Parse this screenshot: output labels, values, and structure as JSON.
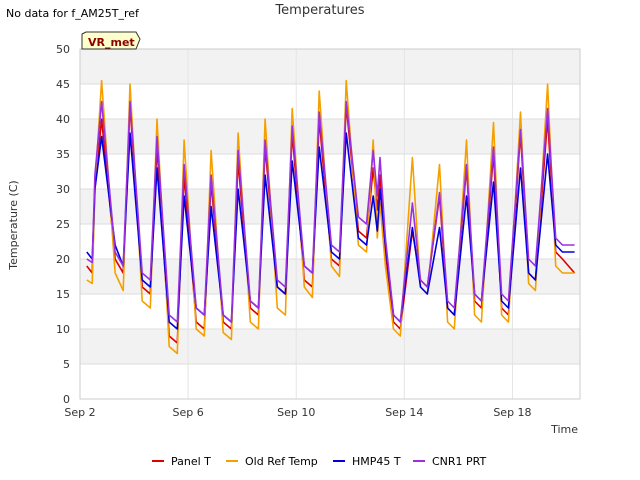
{
  "no_data_text": "No data for f_AM25T_ref",
  "badge": {
    "text": "VR_met",
    "bg": "#ffffcc",
    "text_color": "#8b0000"
  },
  "chart_data": {
    "type": "line",
    "title": "Temperatures",
    "xlabel": "Time",
    "ylabel": "Temperature (C)",
    "ylim": [
      0,
      50
    ],
    "yticks": [
      0,
      5,
      10,
      15,
      20,
      25,
      30,
      35,
      40,
      45,
      50
    ],
    "xlim": [
      2.0,
      20.5
    ],
    "xticks": [
      {
        "value": 2,
        "label": "Sep 2"
      },
      {
        "value": 6,
        "label": "Sep 6"
      },
      {
        "value": 10,
        "label": "Sep 10"
      },
      {
        "value": 14,
        "label": "Sep 14"
      },
      {
        "value": 18,
        "label": "Sep 18"
      }
    ],
    "grid": true,
    "legend_position": "bottom",
    "series": [
      {
        "name": "Panel T",
        "color": "#dd0000",
        "x": [
          2.25,
          2.45,
          2.55,
          2.8,
          3.3,
          3.6,
          3.85,
          4.3,
          4.6,
          4.85,
          5.3,
          5.6,
          5.85,
          6.3,
          6.6,
          6.85,
          7.3,
          7.6,
          7.85,
          8.3,
          8.6,
          8.85,
          9.3,
          9.6,
          9.85,
          10.3,
          10.6,
          10.85,
          11.3,
          11.6,
          11.85,
          12.3,
          12.6,
          12.85,
          13.0,
          13.1,
          13.3,
          13.6,
          13.85,
          14.3,
          14.6,
          14.85,
          15.3,
          15.6,
          15.85,
          16.3,
          16.6,
          16.85,
          17.3,
          17.6,
          17.85,
          18.3,
          18.6,
          18.85,
          19.3,
          19.6,
          19.85,
          20.3
        ],
        "y": [
          19,
          18,
          30,
          40,
          20,
          18,
          42,
          16,
          15,
          36,
          9,
          8,
          32,
          11,
          10,
          31,
          11,
          10,
          34,
          13,
          12,
          36,
          16,
          15,
          38,
          17,
          16,
          40,
          20,
          19,
          42,
          24,
          23,
          33,
          27,
          32,
          21,
          11,
          10,
          24,
          17,
          16,
          29,
          13,
          12,
          33,
          14,
          13,
          35,
          13,
          12,
          38,
          18,
          17,
          40,
          21,
          20,
          18
        ]
      },
      {
        "name": "Old Ref Temp",
        "color": "#f5a000",
        "x": [
          2.25,
          2.45,
          2.55,
          2.8,
          3.3,
          3.6,
          3.85,
          4.3,
          4.6,
          4.85,
          5.3,
          5.6,
          5.85,
          6.3,
          6.6,
          6.85,
          7.3,
          7.6,
          7.85,
          8.3,
          8.6,
          8.85,
          9.3,
          9.6,
          9.85,
          10.3,
          10.6,
          10.85,
          11.3,
          11.6,
          11.85,
          12.3,
          12.6,
          12.85,
          13.0,
          13.1,
          13.3,
          13.6,
          13.85,
          14.3,
          14.6,
          14.85,
          15.3,
          15.6,
          15.85,
          16.3,
          16.6,
          16.85,
          17.3,
          17.6,
          17.85,
          18.3,
          18.6,
          18.85,
          19.3,
          19.6,
          19.85,
          20.3
        ],
        "y": [
          17,
          16.5,
          30,
          45.5,
          18,
          15.5,
          45,
          14,
          13,
          40,
          7.5,
          6.5,
          37,
          10,
          9,
          35.5,
          9.5,
          8.5,
          38,
          11,
          10,
          40,
          13,
          12,
          41.5,
          16,
          14.5,
          44,
          19,
          17.5,
          45.5,
          22,
          21,
          37,
          23,
          28,
          19,
          10,
          9,
          34.5,
          16,
          15,
          33.5,
          11,
          10,
          37,
          12,
          11,
          39.5,
          12,
          11,
          41,
          16.5,
          15.5,
          45,
          19,
          18,
          18
        ]
      },
      {
        "name": "HMP45 T",
        "color": "#0000dd",
        "x": [
          2.25,
          2.45,
          2.55,
          2.8,
          3.3,
          3.6,
          3.85,
          4.3,
          4.6,
          4.85,
          5.3,
          5.6,
          5.85,
          6.3,
          6.6,
          6.85,
          7.3,
          7.6,
          7.85,
          8.3,
          8.6,
          8.85,
          9.3,
          9.6,
          9.85,
          10.3,
          10.6,
          10.85,
          11.3,
          11.6,
          11.85,
          12.3,
          12.6,
          12.85,
          13.0,
          13.1,
          13.3,
          13.6,
          13.85,
          14.3,
          14.6,
          14.85,
          15.3,
          15.6,
          15.85,
          16.3,
          16.6,
          16.85,
          17.3,
          17.6,
          17.85,
          18.3,
          18.6,
          18.85,
          19.3,
          19.6,
          19.85,
          20.3
        ],
        "y": [
          21,
          20,
          30,
          37.5,
          22,
          19,
          38,
          17,
          16,
          33,
          11,
          10,
          29,
          13,
          12,
          27.5,
          12,
          11,
          30,
          14,
          13,
          32,
          16,
          15,
          34,
          19,
          18,
          36,
          21,
          20,
          38,
          23,
          22,
          29,
          24,
          30,
          22,
          12,
          11,
          24.5,
          16,
          15,
          24.5,
          13,
          12,
          29,
          15,
          14,
          31,
          14,
          13,
          33,
          18,
          17,
          35,
          22,
          21,
          21
        ]
      },
      {
        "name": "CNR1 PRT",
        "color": "#9b30e0",
        "x": [
          2.25,
          2.45,
          2.55,
          2.8,
          3.3,
          3.6,
          3.85,
          4.3,
          4.6,
          4.85,
          5.3,
          5.6,
          5.85,
          6.3,
          6.6,
          6.85,
          7.3,
          7.6,
          7.85,
          8.3,
          8.6,
          8.85,
          9.3,
          9.6,
          9.85,
          10.3,
          10.6,
          10.85,
          11.3,
          11.6,
          11.85,
          12.3,
          12.6,
          12.85,
          13.0,
          13.1,
          13.3,
          13.6,
          13.85,
          14.3,
          14.6,
          14.85,
          15.3,
          15.6,
          15.85,
          16.3,
          16.6,
          16.85,
          17.3,
          17.6,
          17.85,
          18.3,
          18.6,
          18.85,
          19.3,
          19.6,
          19.85,
          20.3
        ],
        "y": [
          20,
          19.5,
          32,
          42.5,
          21,
          19,
          42.5,
          18,
          17,
          37.5,
          12,
          11,
          33.5,
          13,
          12,
          32,
          12,
          11,
          35.5,
          14,
          13,
          37,
          17,
          16,
          39,
          19,
          18,
          41,
          22,
          21,
          42.5,
          26,
          25,
          35.5,
          29,
          34.5,
          23,
          12,
          11,
          28,
          17,
          16,
          29.5,
          14,
          13,
          33.5,
          15,
          14,
          36,
          15,
          14,
          38.5,
          20,
          19,
          41.5,
          23,
          22,
          22
        ]
      }
    ]
  }
}
